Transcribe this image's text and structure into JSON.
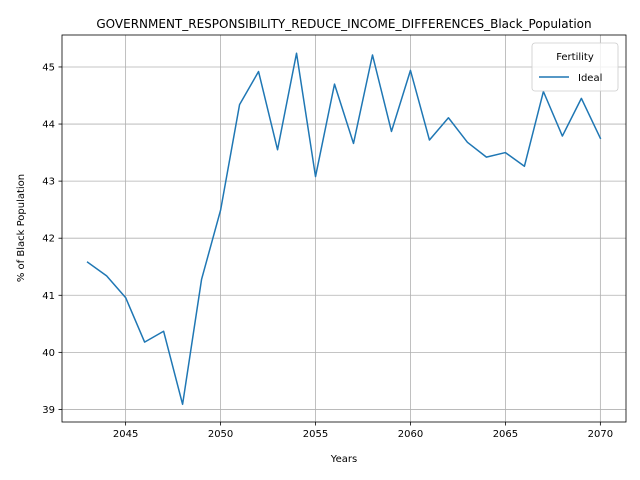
{
  "chart_data": {
    "type": "line",
    "title": "GOVERNMENT_RESPONSIBILITY_REDUCE_INCOME_DIFFERENCES_Black_Population",
    "xlabel": "Years",
    "ylabel": "% of Black Population",
    "xlim": [
      2041.65,
      2071.35
    ],
    "ylim": [
      38.78,
      45.56
    ],
    "xticks": [
      2045,
      2050,
      2055,
      2060,
      2065,
      2070
    ],
    "yticks": [
      39,
      40,
      41,
      42,
      43,
      44,
      45
    ],
    "grid": true,
    "legend": {
      "title": "Fertility",
      "placement": "top-right"
    },
    "series": [
      {
        "name": "Ideal",
        "color": "#1f77b4",
        "x": [
          2043,
          2044,
          2045,
          2046,
          2047,
          2048,
          2049,
          2050,
          2051,
          2052,
          2053,
          2054,
          2055,
          2056,
          2057,
          2058,
          2059,
          2060,
          2061,
          2062,
          2063,
          2064,
          2065,
          2066,
          2067,
          2068,
          2069,
          2070
        ],
        "y": [
          41.58,
          41.34,
          40.96,
          40.18,
          40.37,
          39.09,
          41.28,
          42.49,
          44.34,
          44.92,
          43.55,
          45.24,
          43.08,
          44.7,
          43.66,
          45.21,
          43.87,
          44.94,
          43.72,
          44.11,
          43.68,
          43.42,
          43.5,
          43.26,
          44.57,
          43.79,
          44.45,
          43.75
        ]
      }
    ]
  }
}
